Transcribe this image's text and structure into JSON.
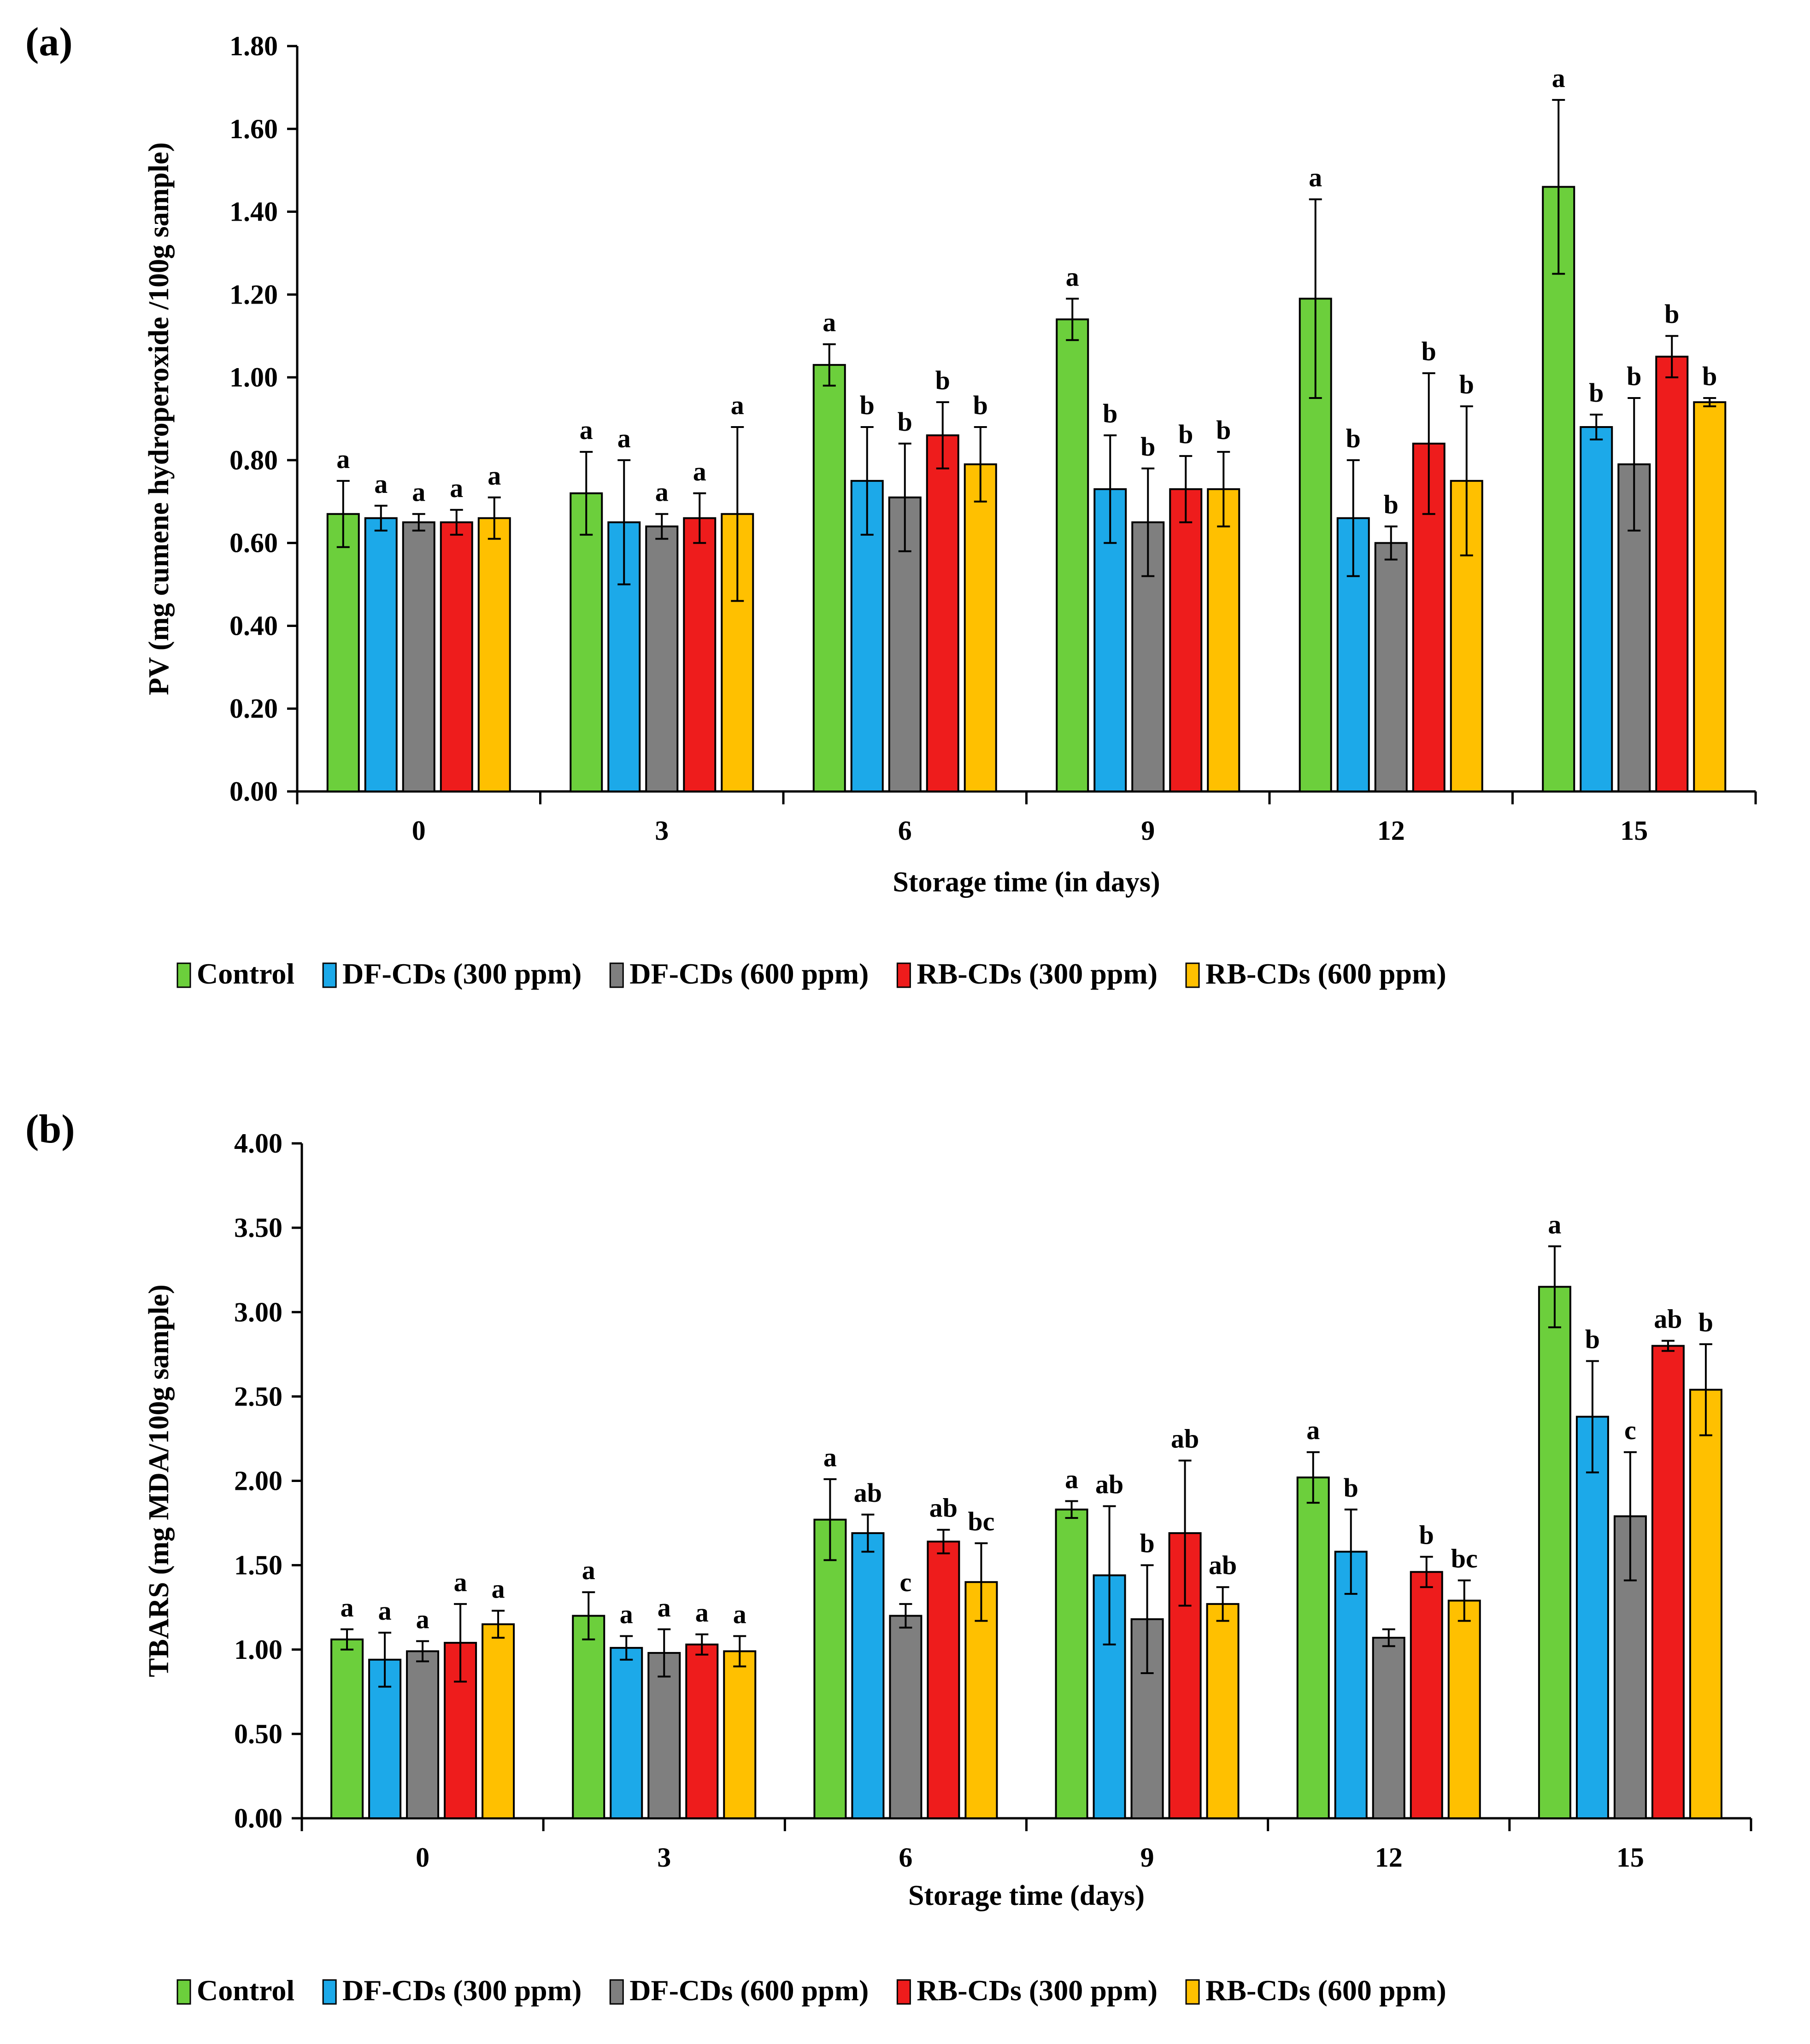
{
  "chart_data": [
    {
      "panel_label": "(a)",
      "type": "bar",
      "ylabel": "PV (mg cumene hydroperoxide /100g sample)",
      "xlabel": "Storage time (in days)",
      "ylim": [
        0,
        1.8
      ],
      "ytick_step": 0.2,
      "ytick_labels": [
        "0.00",
        "0.20",
        "0.40",
        "0.60",
        "0.80",
        "1.00",
        "1.20",
        "1.40",
        "1.60",
        "1.80"
      ],
      "categories": [
        "0",
        "3",
        "6",
        "9",
        "12",
        "15"
      ],
      "legend": [
        "Control",
        "DF-CDs (300 ppm)",
        "DF-CDs (600 ppm)",
        "RB-CDs (300 ppm)",
        "RB-CDs (600 ppm)"
      ],
      "series": [
        {
          "name": "Control",
          "color": "#6ccf3c",
          "values": [
            0.67,
            0.72,
            1.03,
            1.14,
            1.19,
            1.46
          ],
          "errors": [
            0.08,
            0.1,
            0.05,
            0.05,
            0.24,
            0.21
          ],
          "letters": [
            "a",
            "a",
            "a",
            "a",
            "a",
            "a"
          ]
        },
        {
          "name": "DF-CDs (300 ppm)",
          "color": "#1ca9e9",
          "values": [
            0.66,
            0.65,
            0.75,
            0.73,
            0.66,
            0.88
          ],
          "errors": [
            0.03,
            0.15,
            0.13,
            0.13,
            0.14,
            0.03
          ],
          "letters": [
            "a",
            "a",
            "b",
            "b",
            "b",
            "b"
          ]
        },
        {
          "name": "DF-CDs (600 ppm)",
          "color": "#7f7f7f",
          "values": [
            0.65,
            0.64,
            0.71,
            0.65,
            0.6,
            0.79
          ],
          "errors": [
            0.02,
            0.03,
            0.13,
            0.13,
            0.04,
            0.16
          ],
          "letters": [
            "a",
            "a",
            "b",
            "b",
            "b",
            "b"
          ]
        },
        {
          "name": "RB-CDs (300 ppm)",
          "color": "#ee1c1c",
          "values": [
            0.65,
            0.66,
            0.86,
            0.73,
            0.84,
            1.05
          ],
          "errors": [
            0.03,
            0.06,
            0.08,
            0.08,
            0.17,
            0.05
          ],
          "letters": [
            "a",
            "a",
            "b",
            "b",
            "b",
            "b"
          ]
        },
        {
          "name": "RB-CDs (600 ppm)",
          "color": "#ffc000",
          "values": [
            0.66,
            0.67,
            0.79,
            0.73,
            0.75,
            0.94
          ],
          "errors": [
            0.05,
            0.21,
            0.09,
            0.09,
            0.18,
            0.01
          ],
          "letters": [
            "a",
            "a",
            "b",
            "b",
            "b",
            "b"
          ]
        }
      ]
    },
    {
      "panel_label": "(b)",
      "type": "bar",
      "ylabel": "TBARS (mg MDA/100g sample)",
      "xlabel": "Storage time (days)",
      "ylim": [
        0,
        4.0
      ],
      "ytick_step": 0.5,
      "ytick_labels": [
        "0.00",
        "0.50",
        "1.00",
        "1.50",
        "2.00",
        "2.50",
        "3.00",
        "3.50",
        "4.00"
      ],
      "categories": [
        "0",
        "3",
        "6",
        "9",
        "12",
        "15"
      ],
      "legend": [
        "Control",
        "DF-CDs (300 ppm)",
        "DF-CDs (600 ppm)",
        "RB-CDs (300 ppm)",
        "RB-CDs (600 ppm)"
      ],
      "series": [
        {
          "name": "Control",
          "color": "#6ccf3c",
          "values": [
            1.06,
            1.2,
            1.77,
            1.83,
            2.02,
            3.15
          ],
          "errors": [
            0.06,
            0.14,
            0.24,
            0.05,
            0.15,
            0.24
          ],
          "letters": [
            "a",
            "a",
            "a",
            "a",
            "a",
            "a"
          ]
        },
        {
          "name": "DF-CDs (300 ppm)",
          "color": "#1ca9e9",
          "values": [
            0.94,
            1.01,
            1.69,
            1.44,
            1.58,
            2.38
          ],
          "errors": [
            0.16,
            0.07,
            0.11,
            0.41,
            0.25,
            0.33
          ],
          "letters": [
            "a",
            "a",
            "ab",
            "ab",
            "b",
            "b"
          ]
        },
        {
          "name": "DF-CDs (600 ppm)",
          "color": "#7f7f7f",
          "values": [
            0.99,
            0.98,
            1.2,
            1.18,
            1.07,
            1.79
          ],
          "errors": [
            0.06,
            0.14,
            0.07,
            0.32,
            0.05,
            0.38
          ],
          "letters": [
            "a",
            "a",
            "c",
            "b",
            "",
            "c"
          ]
        },
        {
          "name": "RB-CDs (300 ppm)",
          "color": "#ee1c1c",
          "values": [
            1.04,
            1.03,
            1.64,
            1.69,
            1.46,
            2.8
          ],
          "errors": [
            0.23,
            0.06,
            0.07,
            0.43,
            0.09,
            0.03
          ],
          "letters": [
            "a",
            "a",
            "ab",
            "ab",
            "b",
            "ab"
          ]
        },
        {
          "name": "RB-CDs (600 ppm)",
          "color": "#ffc000",
          "values": [
            1.15,
            0.99,
            1.4,
            1.27,
            1.29,
            2.54
          ],
          "errors": [
            0.08,
            0.09,
            0.23,
            0.1,
            0.12,
            0.27
          ],
          "letters": [
            "a",
            "a",
            "bc",
            "ab",
            "bc",
            "b"
          ]
        }
      ]
    }
  ]
}
